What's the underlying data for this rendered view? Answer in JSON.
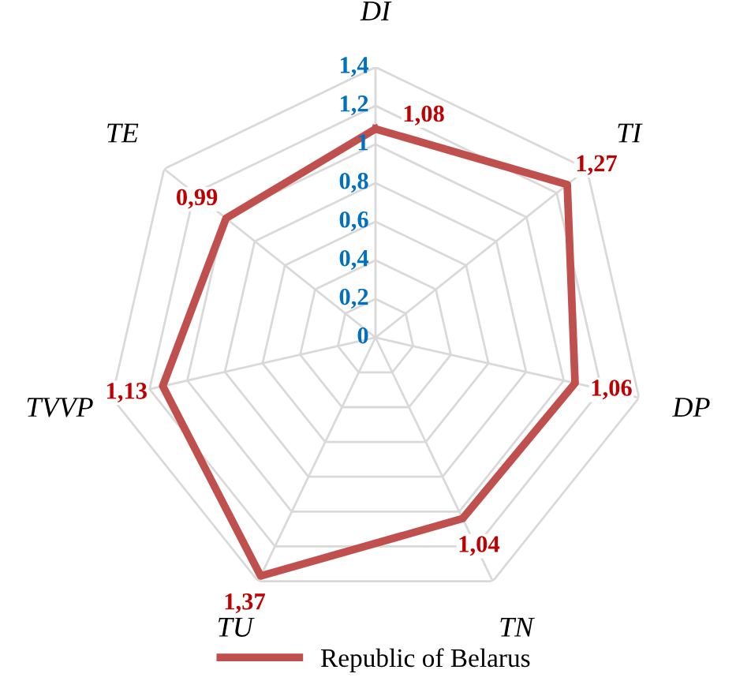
{
  "chart_data": {
    "type": "radar",
    "categories": [
      "DI",
      "TI",
      "DP",
      "TN",
      "TU",
      "TVVP",
      "TE"
    ],
    "series": [
      {
        "name": "Republic of Belarus",
        "color": "#c0504d",
        "values": [
          1.08,
          1.27,
          1.06,
          1.04,
          1.37,
          1.13,
          0.99
        ],
        "value_labels": [
          "1,08",
          "1,27",
          "1,06",
          "1,04",
          "1,37",
          "1,13",
          "0,99"
        ]
      }
    ],
    "ylim": [
      0,
      1.4
    ],
    "yticks": [
      0,
      {
        "value": 0.2,
        "label": "0,2"
      },
      {
        "value": 0.4,
        "label": "0,4"
      },
      {
        "value": 0.6,
        "label": "0,6"
      },
      {
        "value": 0.8,
        "label": "0,8"
      },
      1,
      {
        "value": 1.2,
        "label": "1,2"
      },
      {
        "value": 1.4,
        "label": "1,4"
      }
    ],
    "grid": true,
    "legend": "bottom"
  }
}
